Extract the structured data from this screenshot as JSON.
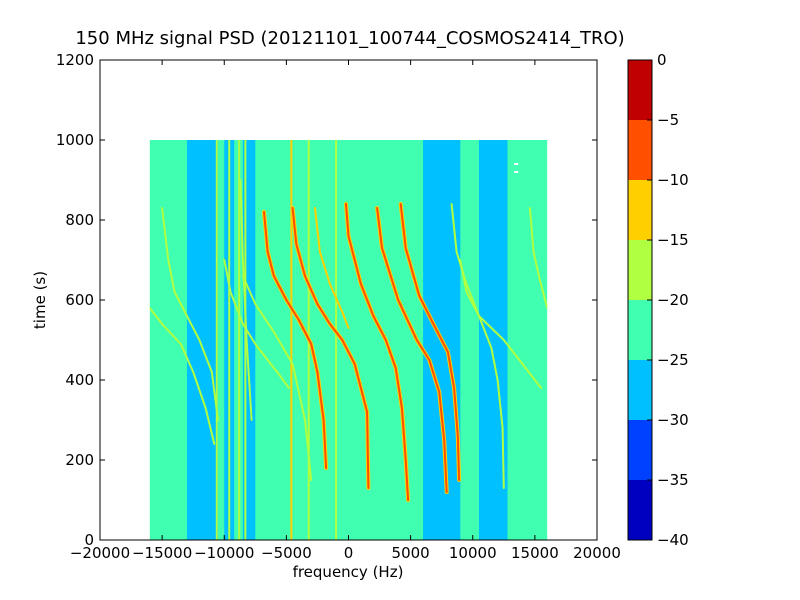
{
  "chart_data": {
    "type": "heatmap",
    "title": "150 MHz signal PSD (20121101_100744_COSMOS2414_TRO)",
    "xlabel": "frequency (Hz)",
    "ylabel": "time (s)",
    "xlim": [
      -20000,
      20000
    ],
    "ylim": [
      0,
      1200
    ],
    "x_ticks": [
      -20000,
      -15000,
      -10000,
      -5000,
      0,
      5000,
      10000,
      15000,
      20000
    ],
    "x_tick_labels": [
      "−20000",
      "−15000",
      "−10000",
      "−5000",
      "0",
      "5000",
      "10000",
      "15000",
      "20000"
    ],
    "y_ticks": [
      0,
      200,
      400,
      600,
      800,
      1000,
      1200
    ],
    "y_tick_labels": [
      "0",
      "200",
      "400",
      "600",
      "800",
      "1000",
      "1200"
    ],
    "data_extent": {
      "x": [
        -16000,
        16000
      ],
      "y": [
        0,
        1000
      ]
    },
    "background_level": -22.5,
    "bands": [
      {
        "x": [
          -13000,
          -10500
        ],
        "level": -27.5
      },
      {
        "x": [
          -10000,
          -9200
        ],
        "level": -27.5
      },
      {
        "x": [
          -8500,
          -7500
        ],
        "level": -27.5
      },
      {
        "x": [
          6000,
          9000
        ],
        "level": -27.5
      },
      {
        "x": [
          10500,
          12800
        ],
        "level": -27.5
      }
    ],
    "vertical_lines": [
      {
        "x": -10600,
        "level": -17.5
      },
      {
        "x": -9600,
        "level": -17.5
      },
      {
        "x": -8800,
        "level": -17.5
      },
      {
        "x": -8300,
        "level": -17.5
      },
      {
        "x": -4600,
        "level": -12.5
      },
      {
        "x": -3200,
        "level": -17.5
      },
      {
        "x": -1000,
        "level": -17.5
      },
      {
        "x": 10200,
        "level": -22.5
      }
    ],
    "tracks": [
      {
        "level": -17.5,
        "points": [
          [
            -16000,
            580
          ],
          [
            -15000,
            540
          ],
          [
            -13500,
            490
          ],
          [
            -12500,
            420
          ],
          [
            -11500,
            330
          ],
          [
            -10800,
            240
          ]
        ]
      },
      {
        "level": -17.5,
        "points": [
          [
            -15000,
            830
          ],
          [
            -14500,
            700
          ],
          [
            -14000,
            620
          ],
          [
            -13000,
            560
          ],
          [
            -12000,
            500
          ],
          [
            -11000,
            420
          ],
          [
            -10500,
            300
          ]
        ]
      },
      {
        "level": -17.5,
        "points": [
          [
            -10000,
            700
          ],
          [
            -9500,
            620
          ],
          [
            -8500,
            540
          ],
          [
            -7500,
            490
          ],
          [
            -6500,
            450
          ],
          [
            -5500,
            410
          ],
          [
            -4800,
            380
          ]
        ]
      },
      {
        "level": -17.5,
        "points": [
          [
            -8500,
            660
          ],
          [
            -7500,
            590
          ],
          [
            -6000,
            520
          ],
          [
            -4500,
            440
          ],
          [
            -3500,
            300
          ],
          [
            -3000,
            150
          ]
        ]
      },
      {
        "level": -7.5,
        "points": [
          [
            -6800,
            820
          ],
          [
            -6500,
            720
          ],
          [
            -6000,
            660
          ],
          [
            -5000,
            600
          ],
          [
            -4000,
            550
          ],
          [
            -3000,
            490
          ],
          [
            -2500,
            420
          ],
          [
            -2000,
            300
          ],
          [
            -1800,
            180
          ]
        ]
      },
      {
        "level": -7.5,
        "points": [
          [
            -4500,
            830
          ],
          [
            -4200,
            740
          ],
          [
            -3500,
            660
          ],
          [
            -2500,
            590
          ],
          [
            -1500,
            540
          ],
          [
            -500,
            500
          ],
          [
            500,
            440
          ],
          [
            1500,
            320
          ],
          [
            1600,
            130
          ]
        ]
      },
      {
        "level": -12.5,
        "points": [
          [
            -2700,
            830
          ],
          [
            -2300,
            720
          ],
          [
            -1500,
            640
          ],
          [
            -500,
            570
          ],
          [
            0,
            530
          ]
        ]
      },
      {
        "level": -7.5,
        "points": [
          [
            -200,
            840
          ],
          [
            0,
            760
          ],
          [
            1000,
            640
          ],
          [
            2000,
            560
          ],
          [
            3000,
            500
          ],
          [
            3800,
            430
          ],
          [
            4300,
            330
          ],
          [
            4600,
            200
          ],
          [
            4800,
            100
          ]
        ]
      },
      {
        "level": -7.5,
        "points": [
          [
            2300,
            830
          ],
          [
            2700,
            730
          ],
          [
            4000,
            600
          ],
          [
            5500,
            500
          ],
          [
            6500,
            450
          ],
          [
            7300,
            370
          ],
          [
            7700,
            250
          ],
          [
            7900,
            120
          ]
        ]
      },
      {
        "level": -7.5,
        "points": [
          [
            4200,
            840
          ],
          [
            4600,
            730
          ],
          [
            5700,
            610
          ],
          [
            7000,
            530
          ],
          [
            8000,
            470
          ],
          [
            8500,
            380
          ],
          [
            8800,
            260
          ],
          [
            8900,
            150
          ]
        ]
      },
      {
        "level": -17.5,
        "points": [
          [
            8300,
            840
          ],
          [
            8700,
            720
          ],
          [
            9500,
            640
          ],
          [
            10500,
            560
          ],
          [
            11500,
            480
          ],
          [
            12000,
            400
          ],
          [
            12400,
            280
          ],
          [
            12500,
            130
          ]
        ]
      },
      {
        "level": -17.5,
        "points": [
          [
            9000,
            700
          ],
          [
            9500,
            620
          ],
          [
            10500,
            560
          ],
          [
            12500,
            500
          ],
          [
            14000,
            440
          ],
          [
            15500,
            380
          ]
        ]
      },
      {
        "level": -17.5,
        "points": [
          [
            -8700,
            900
          ],
          [
            -8500,
            700
          ],
          [
            -8200,
            500
          ],
          [
            -7800,
            300
          ]
        ]
      },
      {
        "level": -17.5,
        "points": [
          [
            14600,
            830
          ],
          [
            14900,
            720
          ],
          [
            15400,
            650
          ],
          [
            16000,
            580
          ]
        ]
      }
    ],
    "annotations": [
      {
        "x": 13500,
        "y": 920,
        "level": -17.5
      },
      {
        "x": 13500,
        "y": 940,
        "level": -17.5
      }
    ],
    "colorbar": {
      "levels": [
        -40,
        -35,
        -30,
        -25,
        -20,
        -15,
        -10,
        -5,
        0
      ],
      "tick_labels": [
        "−40",
        "−35",
        "−30",
        "−25",
        "−20",
        "−15",
        "−10",
        "−5",
        "0"
      ],
      "colors": [
        "#0000c0",
        "#0040ff",
        "#00c0ff",
        "#40ffb0",
        "#b0ff40",
        "#ffd000",
        "#ff5000",
        "#c00000"
      ]
    }
  }
}
